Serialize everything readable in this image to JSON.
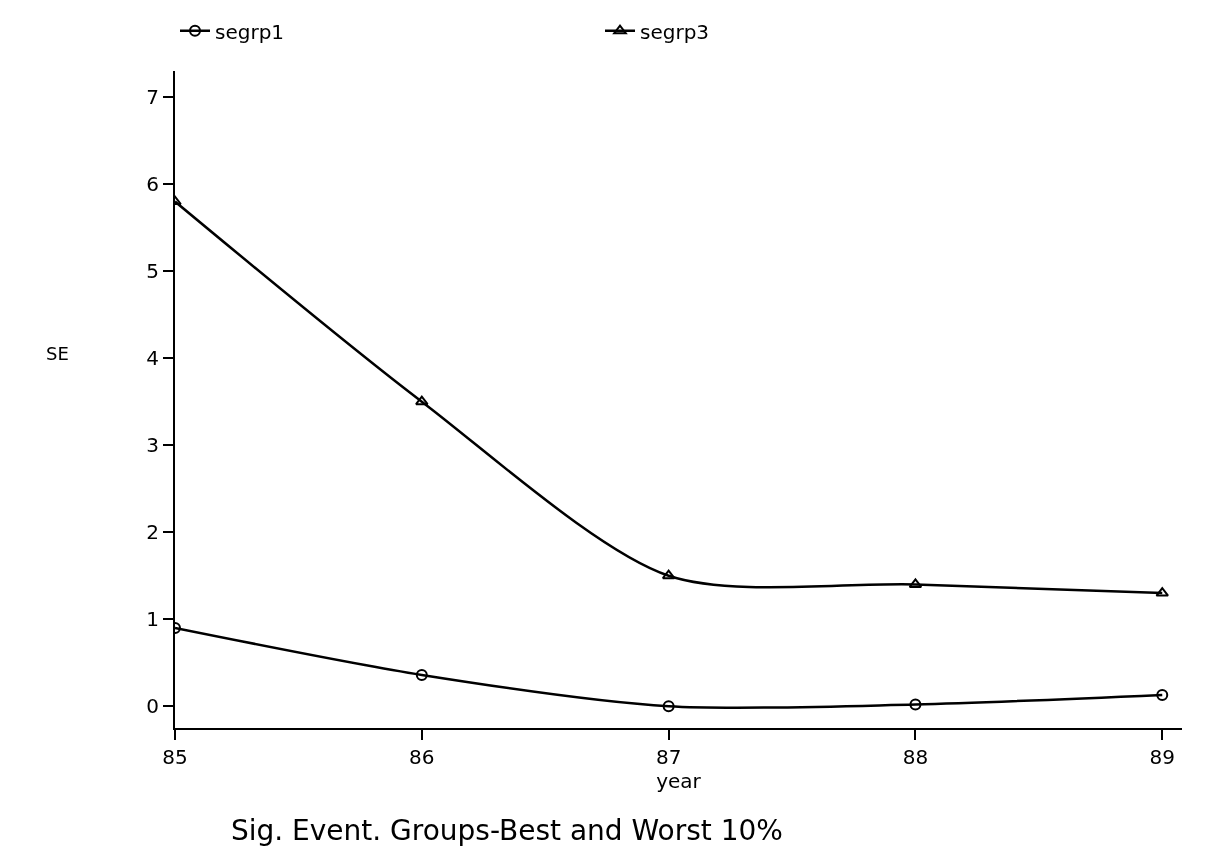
{
  "chart_data": {
    "type": "line",
    "title": "Sig. Event. Groups-Best and Worst 10%",
    "xlabel": "year",
    "ylabel": "SE",
    "x": [
      85,
      86,
      87,
      88,
      89
    ],
    "series": [
      {
        "name": "segrp1",
        "color": "#000000",
        "marker": "circle",
        "values": [
          0.9,
          0.36,
          0.0,
          0.02,
          0.13
        ]
      },
      {
        "name": "segrp3",
        "color": "#000000",
        "marker": "triangle",
        "values": [
          5.8,
          3.5,
          1.5,
          1.4,
          1.3
        ]
      }
    ],
    "xlim": [
      85,
      89.08
    ],
    "xticks": [
      85,
      86,
      87,
      88,
      89
    ],
    "ylim": [
      -0.25,
      7.3
    ],
    "yticks": [
      0,
      1,
      2,
      3,
      4,
      5,
      6,
      7
    ],
    "legend": "top",
    "line_style": "solid"
  }
}
